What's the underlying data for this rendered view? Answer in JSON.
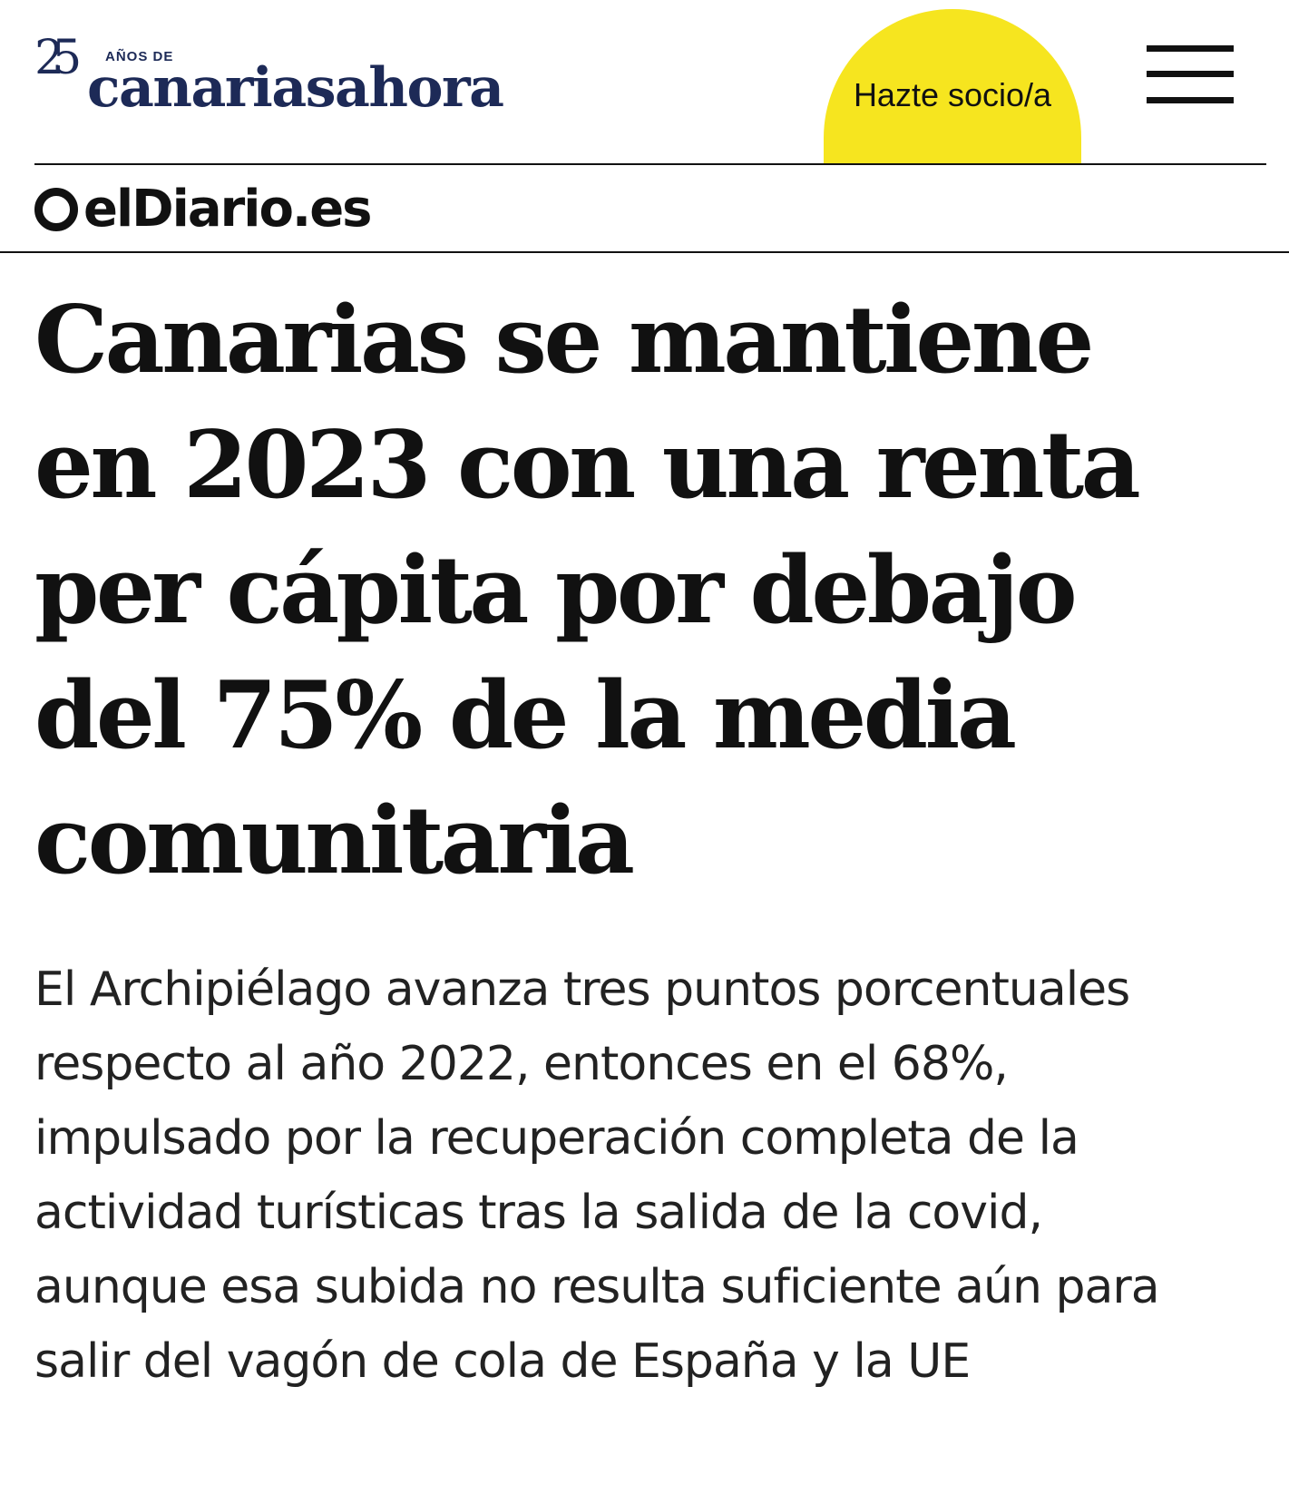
{
  "header": {
    "logo_number": "25",
    "logo_years": "AÑOS DE",
    "logo_name": "canariasahora",
    "subscribe_label": "Hazte socio/a",
    "menu_icon": "hamburger-menu-icon",
    "subscribe_color": "#f6e51f",
    "brand_color": "#1d2a57"
  },
  "partner": {
    "name": "elDiario.es",
    "icon": "eldiario-ring-icon"
  },
  "article": {
    "headline_lines": [
      "Canarias se mantiene",
      "en 2023 con una renta",
      "per cápita por debajo",
      "del 75% de la media",
      "comunitaria"
    ],
    "standfirst_lines": [
      "El Archipiélago avanza tres puntos porcentuales",
      "respecto al año 2022, entonces en el 68%,",
      "impulsado por la recuperación completa de la",
      "actividad turísticas tras la salida de la covid,",
      "aunque esa subida no resulta suficiente aún para",
      "salir del vagón de cola de España y la UE"
    ]
  }
}
